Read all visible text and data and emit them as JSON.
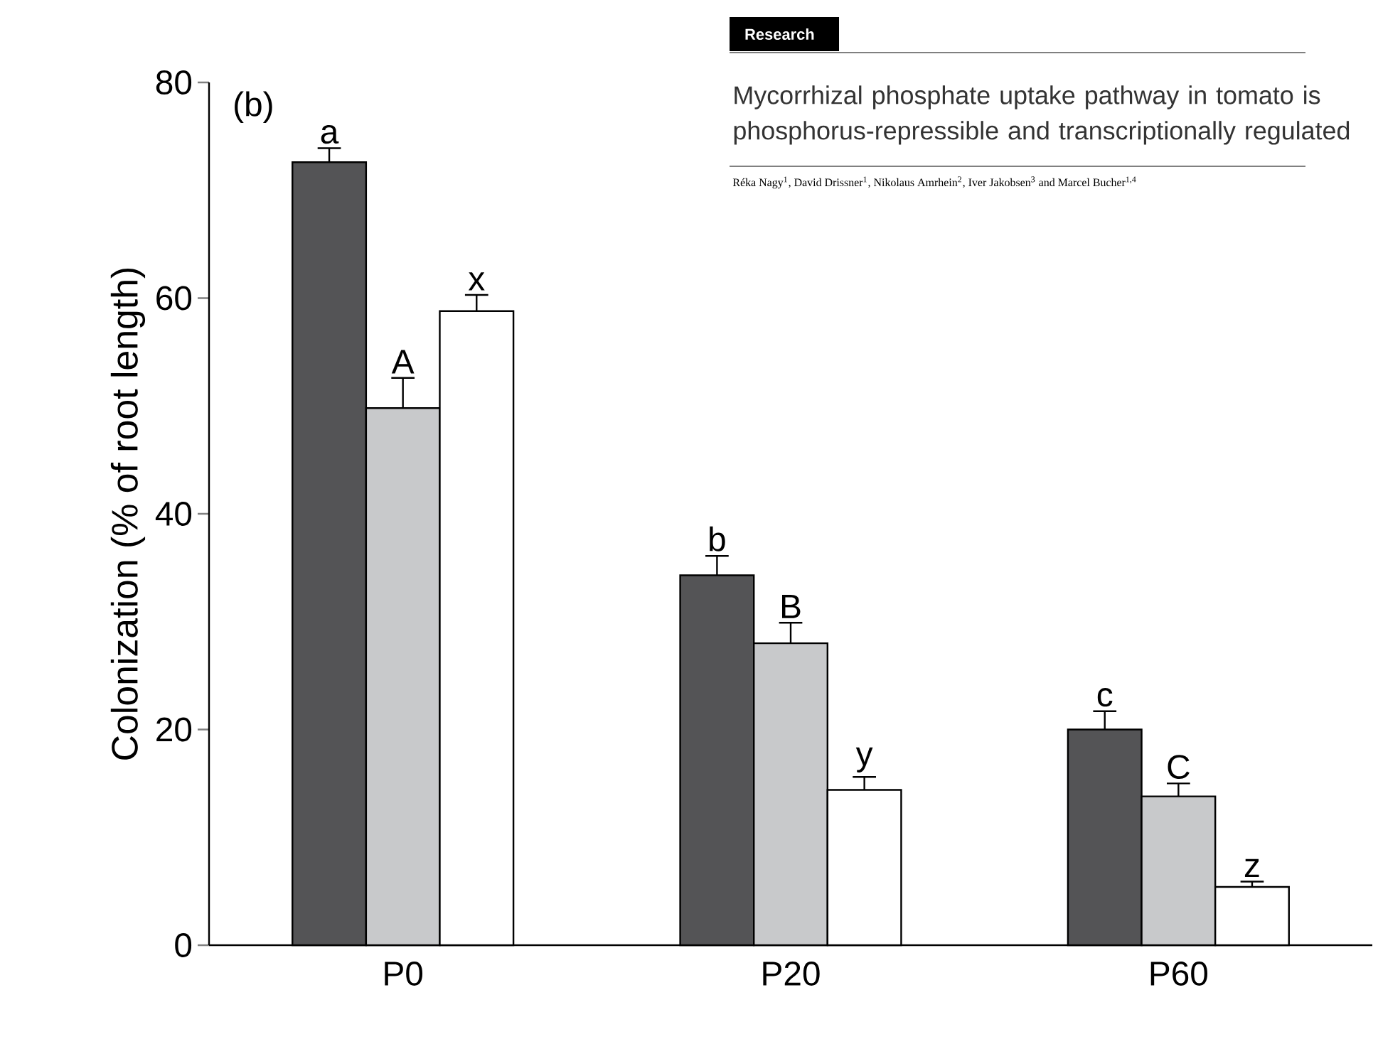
{
  "chart_data": {
    "type": "bar",
    "ylabel": "Colonization (% of root length)",
    "categories": [
      "P0",
      "P20",
      "P60"
    ],
    "series": [
      {
        "color": "#545456",
        "values": [
          72.6,
          34.3,
          20.0
        ],
        "errors": [
          1.3,
          1.8,
          1.7
        ],
        "value_labels": [
          "a",
          "b",
          "c"
        ]
      },
      {
        "color": "#c8c9cb",
        "values": [
          49.8,
          28.0,
          13.8
        ],
        "errors": [
          2.8,
          1.9,
          1.2
        ],
        "value_labels": [
          "A",
          "B",
          "C"
        ]
      },
      {
        "color": "#ffffff",
        "values": [
          58.8,
          14.4,
          5.4
        ],
        "errors": [
          1.5,
          1.2,
          0.5
        ],
        "value_labels": [
          "x",
          "y",
          "z"
        ]
      }
    ],
    "ylim": [
      0,
      80
    ],
    "yticks": [
      0,
      20,
      40,
      60,
      80
    ],
    "grid": false,
    "annotations": [
      "(b)",
      "Research",
      "Mycorrhizal phosphate uptake pathway in tomato is phosphorus-repressible and transcriptionally regulated",
      "Réka Nagy$^{1}$, David Drissner$^{1}$, Nikolaus Amrhein$^{2}$, Iver Jakobsen$^{3}$ and Marcel Bucher$^{1,4}$"
    ]
  }
}
